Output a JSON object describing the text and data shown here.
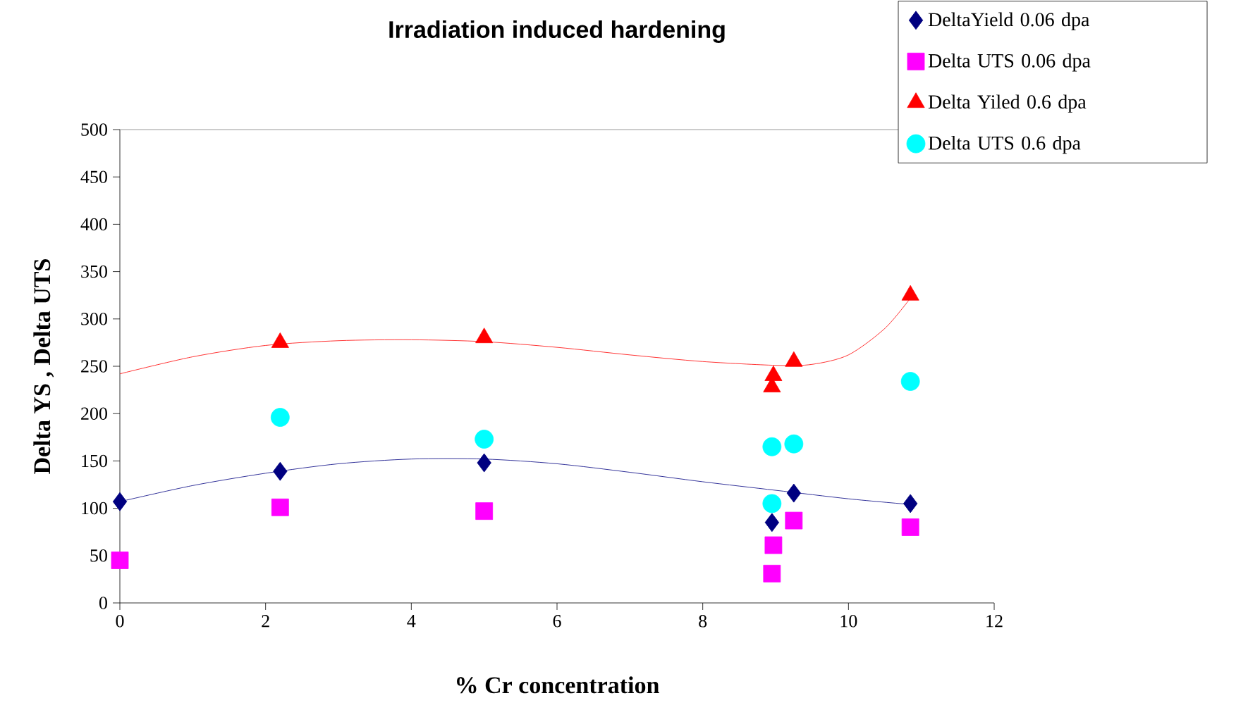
{
  "chart_data": {
    "type": "scatter",
    "title": "Irradiation induced hardening",
    "xlabel": "% Cr concentration",
    "ylabel": "Delta YS , Delta UTS",
    "xlim": [
      0,
      12
    ],
    "xticks": [
      0,
      2,
      4,
      6,
      8,
      10,
      12
    ],
    "ylim": [
      0,
      500
    ],
    "yticks": [
      0,
      50,
      100,
      150,
      200,
      250,
      300,
      350,
      400,
      450,
      500
    ],
    "grid": false,
    "legend": "top right",
    "series": [
      {
        "name": "DeltaYield 0.06 dpa",
        "type": "scatter",
        "marker": "diamond",
        "color": "#000080",
        "x": [
          0,
          2.2,
          5,
          8.95,
          9.25,
          10.85
        ],
        "values": [
          107,
          139,
          148,
          85,
          116,
          105
        ]
      },
      {
        "name": "Delta UTS 0.06 dpa",
        "type": "scatter",
        "marker": "square",
        "color": "#ff00ff",
        "x": [
          0,
          2.2,
          5,
          8.95,
          8.97,
          9.25,
          10.85
        ],
        "values": [
          45,
          101,
          97,
          31,
          61,
          87,
          80
        ]
      },
      {
        "name": "Delta Yiled 0.6 dpa",
        "type": "scatter",
        "marker": "triangle",
        "color": "#ff0000",
        "x": [
          2.2,
          5,
          8.95,
          8.97,
          9.25,
          10.85
        ],
        "values": [
          275,
          280,
          228,
          240,
          255,
          325
        ]
      },
      {
        "name": "Delta UTS 0.6 dpa",
        "type": "scatter",
        "marker": "circle",
        "color": "#00ffff",
        "x": [
          2.2,
          5,
          8.95,
          8.95,
          9.25,
          10.85
        ],
        "values": [
          196,
          173,
          165,
          105,
          168,
          234
        ]
      },
      {
        "type": "line",
        "marker": "none",
        "color": "#000080",
        "x": [
          0,
          1,
          2,
          3,
          4,
          5,
          6,
          7,
          8,
          9,
          10,
          10.85
        ],
        "values": [
          107,
          124,
          137,
          147,
          152,
          152,
          147,
          138,
          128,
          119,
          110,
          104
        ]
      },
      {
        "type": "line",
        "marker": "none",
        "color": "#ff0000",
        "x": [
          0,
          1,
          2,
          3,
          4,
          5,
          6,
          7,
          8,
          9,
          9.5,
          10,
          10.5,
          10.85
        ],
        "values": [
          242,
          260,
          272,
          277,
          278,
          276,
          270,
          262,
          255,
          251,
          252,
          262,
          290,
          322
        ]
      }
    ]
  }
}
